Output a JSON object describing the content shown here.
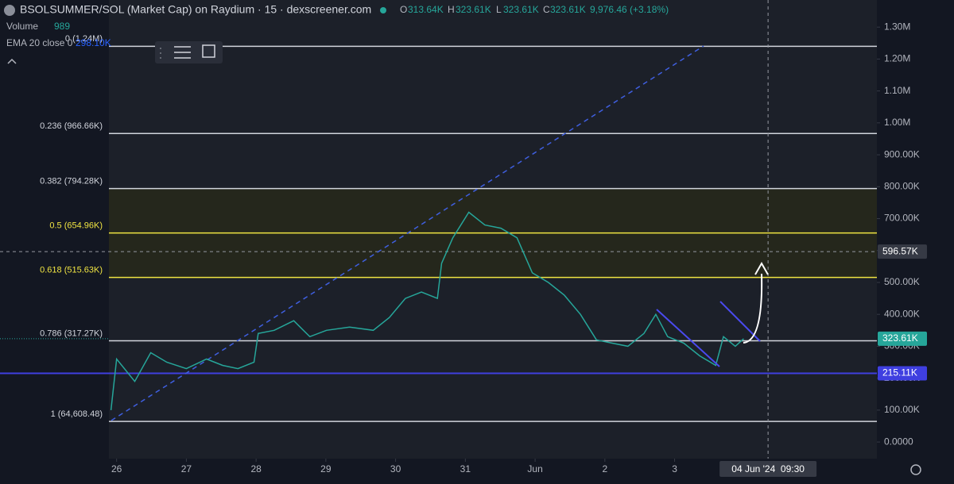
{
  "chart_data": {
    "type": "line",
    "title": "BSOLSUMMER/SOL (Market Cap) on Raydium · 15 · dexscreener.com",
    "ohlc": [
      {
        "label": "O",
        "value": "313.64K"
      },
      {
        "label": "H",
        "value": "323.61K"
      },
      {
        "label": "L",
        "value": "323.61K"
      },
      {
        "label": "C",
        "value": "323.61K"
      }
    ],
    "change": "9,976.46 (+3.18%)",
    "indicators": [
      {
        "name": "Volume",
        "value": "989"
      },
      {
        "name": "EMA 20 close 0",
        "value": "298.10K"
      }
    ],
    "xlim": [
      -0.11,
      10.9
    ],
    "xticks": [
      {
        "value": 0,
        "label": "26"
      },
      {
        "value": 1,
        "label": "27"
      },
      {
        "value": 2,
        "label": "28"
      },
      {
        "value": 3,
        "label": "29"
      },
      {
        "value": 4,
        "label": "30"
      },
      {
        "value": 5,
        "label": "31"
      },
      {
        "value": 6,
        "label": "Jun"
      },
      {
        "value": 7,
        "label": "2"
      },
      {
        "value": 8,
        "label": "3"
      }
    ],
    "ylim": [
      -52000,
      1385000
    ],
    "yticks": [
      {
        "value": 0,
        "label": "0.0000"
      },
      {
        "value": 100000,
        "label": "100.00K"
      },
      {
        "value": 200000,
        "label": "200.00K"
      },
      {
        "value": 300000,
        "label": "300.00K"
      },
      {
        "value": 400000,
        "label": "400.00K"
      },
      {
        "value": 500000,
        "label": "500.00K"
      },
      {
        "value": 600000,
        "label": "600.00K"
      },
      {
        "value": 700000,
        "label": "700.00K"
      },
      {
        "value": 800000,
        "label": "800.00K"
      },
      {
        "value": 900000,
        "label": "900.00K"
      },
      {
        "value": 1000000,
        "label": "1.00M"
      },
      {
        "value": 1100000,
        "label": "1.10M"
      },
      {
        "value": 1200000,
        "label": "1.20M"
      },
      {
        "value": 1300000,
        "label": "1.30M"
      }
    ],
    "series": [
      {
        "name": "BSOLSUMMER/SOL",
        "color": "#26a69a",
        "x": [
          -0.08,
          0,
          0.26,
          0.49,
          0.72,
          1,
          1.29,
          1.52,
          1.74,
          1.97,
          2.03,
          2.26,
          2.54,
          2.77,
          3.01,
          3.34,
          3.68,
          3.91,
          4.14,
          4.37,
          4.6,
          4.66,
          4.82,
          5.05,
          5.28,
          5.51,
          5.74,
          5.96,
          6.19,
          6.42,
          6.65,
          6.88,
          7.1,
          7.33,
          7.56,
          7.73,
          7.9,
          8.13,
          8.36,
          8.59,
          8.7,
          8.87,
          8.99
        ],
        "values": [
          100000,
          260000,
          190000,
          280000,
          250000,
          230000,
          260000,
          240000,
          230000,
          250000,
          340000,
          350000,
          380000,
          330000,
          350000,
          360000,
          350000,
          390000,
          450000,
          470000,
          450000,
          560000,
          640000,
          720000,
          680000,
          670000,
          640000,
          530000,
          500000,
          460000,
          400000,
          320000,
          310000,
          300000,
          340000,
          400000,
          330000,
          310000,
          270000,
          240000,
          330000,
          300000,
          323610
        ]
      }
    ],
    "fib_levels": [
      {
        "value": 1240000,
        "label": "0 (1.24M)",
        "color": "#d1d4dc"
      },
      {
        "value": 966660,
        "label": "0.236 (966.66K)",
        "color": "#d1d4dc"
      },
      {
        "value": 794280,
        "label": "0.382 (794.28K)",
        "color": "#d1d4dc",
        "fill": "#25271c"
      },
      {
        "value": 654960,
        "label": "0.5 (654.96K)",
        "color": "#f0e442",
        "fill": "#25271c"
      },
      {
        "value": 515630,
        "label": "0.618 (515.63K)",
        "color": "#f0e442"
      },
      {
        "value": 317270,
        "label": "0.786 (317.27K)",
        "color": "#d1d4dc"
      },
      {
        "value": 64608.48,
        "label": "1 (64,608.48)",
        "color": "#d1d4dc"
      }
    ],
    "price_lines": [
      {
        "value": 323610,
        "label": "323.61K",
        "color": "#26a69a",
        "line": false
      },
      {
        "value": 215110,
        "label": "215.11K",
        "color": "#3f3fe0",
        "line": true
      }
    ],
    "crosshair": {
      "x": 9.34,
      "y": 596570,
      "y_label": "596.57K",
      "x_label": "04 Jun '24  09:30"
    }
  }
}
